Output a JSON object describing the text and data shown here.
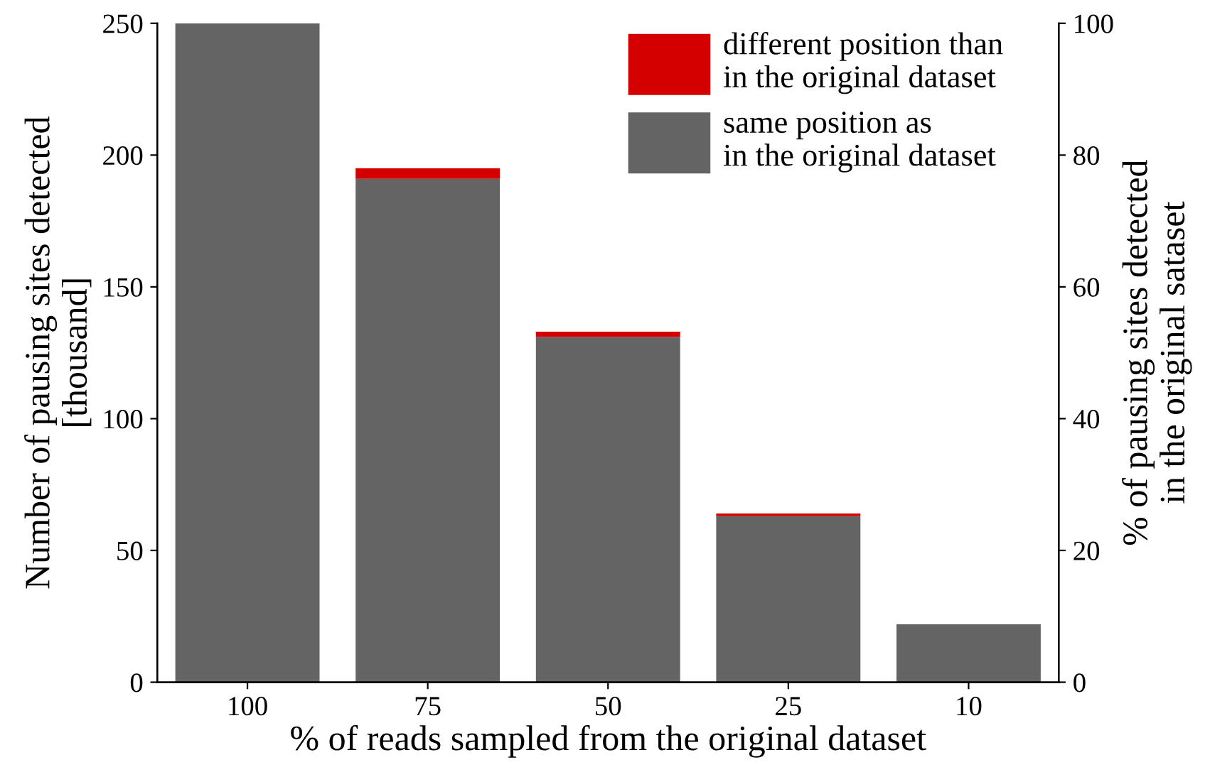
{
  "chart_data": {
    "type": "bar",
    "stacked": true,
    "categories": [
      "100",
      "75",
      "50",
      "25",
      "10"
    ],
    "series": [
      {
        "name": "same position as\nin the original dataset",
        "color": "#646464",
        "values": [
          250,
          191,
          131,
          63,
          22
        ]
      },
      {
        "name": "different position than\nin the original dataset",
        "color": "#d40000",
        "values": [
          0,
          4,
          2,
          1,
          0
        ]
      }
    ],
    "xlabel": "% of reads sampled from the original dataset",
    "ylabel": "Number of pausing sites detected\n[thousand]",
    "y2label": "% of pausing sites detected\nin the original sataset",
    "ylim": [
      0,
      250
    ],
    "yticks": [
      0,
      50,
      100,
      150,
      200,
      250
    ],
    "y2lim": [
      0,
      100
    ],
    "y2ticks": [
      0,
      20,
      40,
      60,
      80,
      100
    ],
    "legend": "top right",
    "grid": false
  }
}
